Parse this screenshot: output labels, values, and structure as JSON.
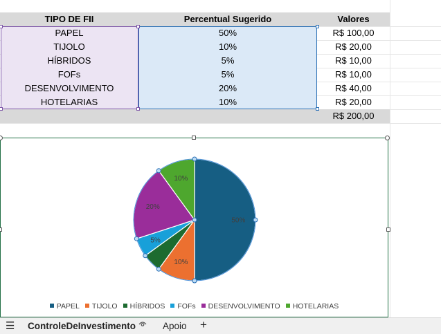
{
  "table": {
    "headers": [
      "TIPO DE FII",
      "Percentual Sugerido",
      "Valores"
    ],
    "rows": [
      {
        "tipo": "PAPEL",
        "percentual": "50%",
        "valor": "R$ 100,00"
      },
      {
        "tipo": "TIJOLO",
        "percentual": "10%",
        "valor": "R$ 20,00"
      },
      {
        "tipo": "HÍBRIDOS",
        "percentual": "5%",
        "valor": "R$ 10,00"
      },
      {
        "tipo": "FOFs",
        "percentual": "5%",
        "valor": "R$ 10,00"
      },
      {
        "tipo": "DESENVOLVIMENTO",
        "percentual": "20%",
        "valor": "R$ 40,00"
      },
      {
        "tipo": "HOTELARIAS",
        "percentual": "10%",
        "valor": "R$ 20,00"
      }
    ],
    "total": "R$ 200,00"
  },
  "chart_data": {
    "type": "pie",
    "categories": [
      "PAPEL",
      "TIJOLO",
      "HÍBRIDOS",
      "FOFs",
      "DESENVOLVIMENTO",
      "HOTELARIAS"
    ],
    "values": [
      50,
      10,
      5,
      5,
      20,
      10
    ],
    "data_labels": [
      "50%",
      "10%",
      "",
      "5%",
      "20%",
      "10%"
    ],
    "colors": [
      "#165e83",
      "#ec7030",
      "#1d6b30",
      "#18a0d9",
      "#9a2d9a",
      "#4ea72e"
    ],
    "legend_position": "bottom",
    "title": ""
  },
  "sheets": {
    "active": "ControleDeInvestimento",
    "other": "Apoio",
    "add": "+",
    "menu": "☰",
    "visibility_icon": "eye-icon"
  }
}
